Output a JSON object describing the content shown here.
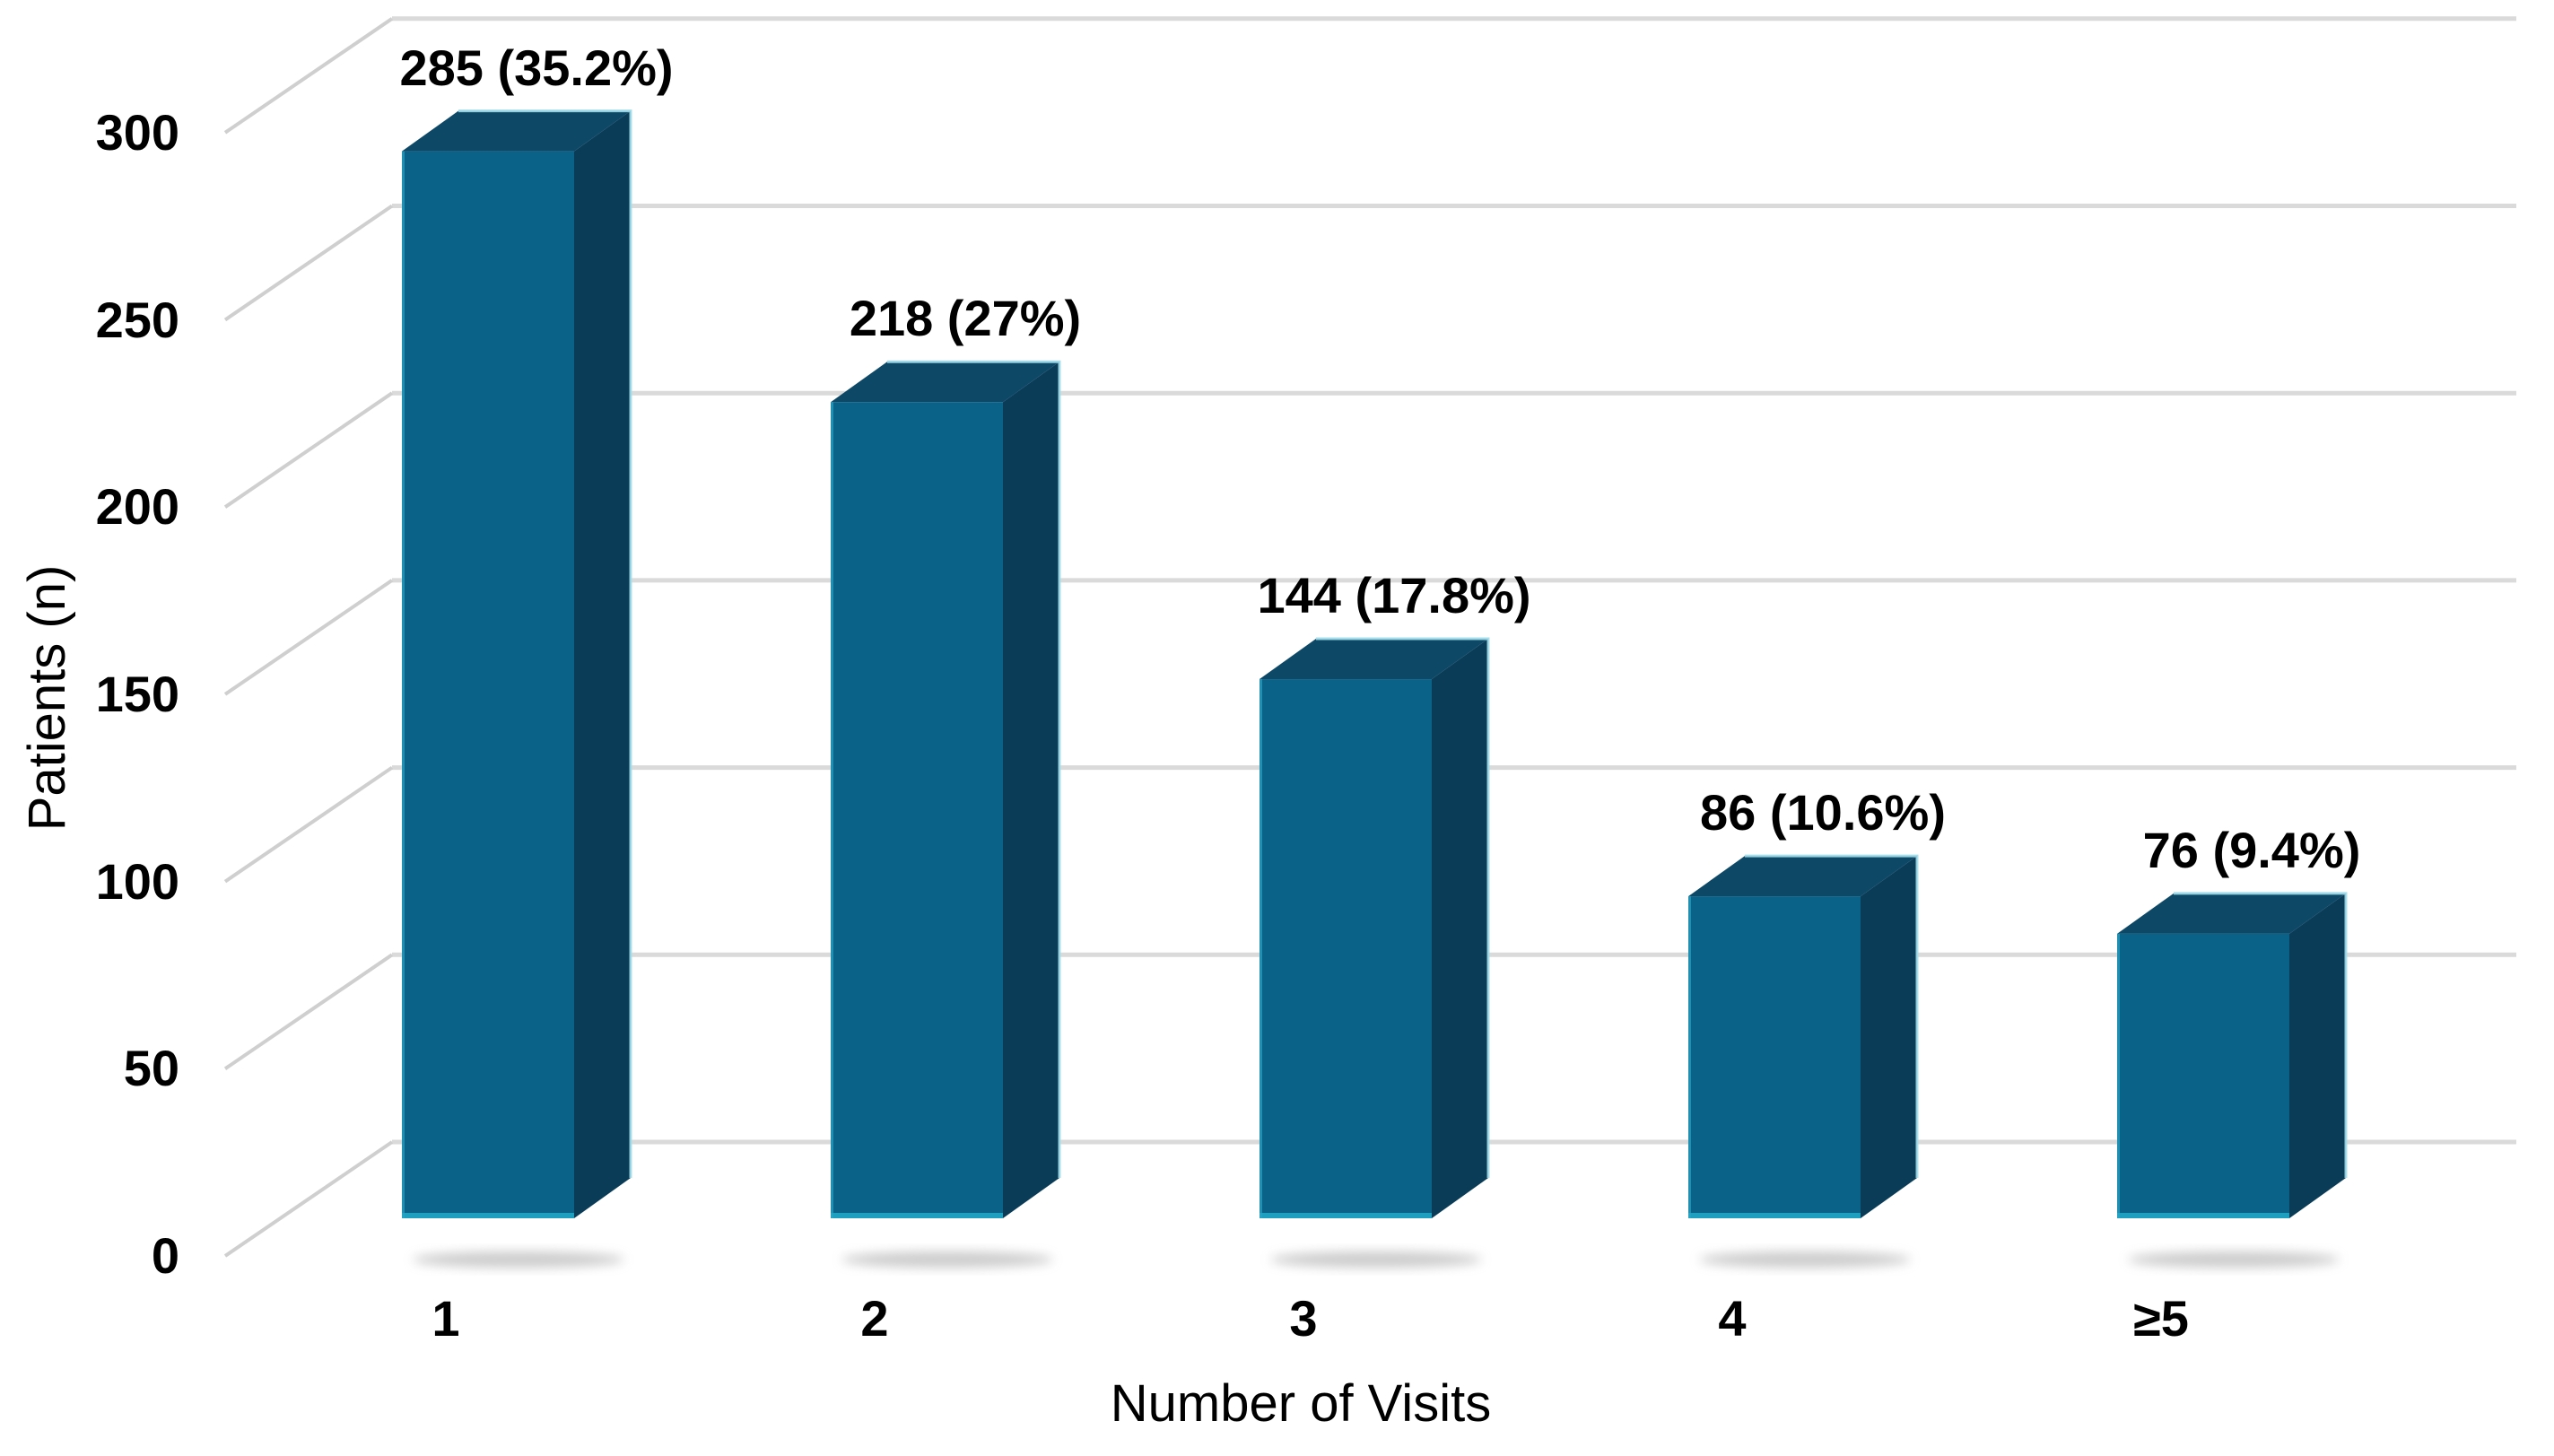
{
  "chart_data": {
    "type": "bar",
    "style": "3d-column",
    "title": "",
    "xlabel": "Number of Visits",
    "ylabel": "Patients (n)",
    "categories": [
      "1",
      "2",
      "3",
      "4",
      "≥5"
    ],
    "values": [
      285,
      218,
      144,
      86,
      76
    ],
    "data_labels": [
      "285 (35.2%)",
      "218 (27%)",
      "144 (17.8%)",
      "86 (10.6%)",
      "76 (9.4%)"
    ],
    "y_ticks": [
      0,
      50,
      100,
      150,
      200,
      250,
      300
    ],
    "ylim": [
      0,
      300
    ],
    "grid": true,
    "legend": false,
    "colors": {
      "bar_front": "#0B6289",
      "bar_top": "#0D4866",
      "bar_side": "#0A3C58",
      "bar_bottom_edge": "#1E9FC0",
      "bar_left_edge": "#2AA4C4",
      "bar_back_edge": "#9FDBEA",
      "gridline": "#DADADA",
      "connector": "#CFCFCF",
      "shadow": "#9A9A9A",
      "text": "#000000",
      "background": "#FFFFFF"
    }
  }
}
